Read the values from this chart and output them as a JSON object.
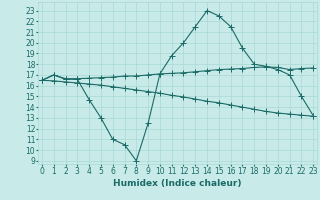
{
  "xlabel": "Humidex (Indice chaleur)",
  "bg_color": "#c8eae8",
  "grid_color": "#a8d8d4",
  "line_color": "#1a6b68",
  "x_ticks": [
    0,
    1,
    2,
    3,
    4,
    5,
    6,
    7,
    8,
    9,
    10,
    11,
    12,
    13,
    14,
    15,
    16,
    17,
    18,
    19,
    20,
    21,
    22,
    23
  ],
  "y_ticks": [
    9,
    10,
    11,
    12,
    13,
    14,
    15,
    16,
    17,
    18,
    19,
    20,
    21,
    22,
    23
  ],
  "ylim": [
    8.7,
    23.8
  ],
  "xlim": [
    -0.3,
    23.3
  ],
  "line1_x": [
    0,
    1,
    2,
    3,
    4,
    5,
    6,
    7,
    8,
    9,
    10,
    11,
    12,
    13,
    14,
    15,
    16,
    17,
    18,
    19,
    20,
    21,
    22,
    23
  ],
  "line1_y": [
    16.5,
    17.0,
    16.65,
    16.65,
    16.7,
    16.75,
    16.8,
    16.9,
    16.9,
    17.0,
    17.1,
    17.15,
    17.2,
    17.3,
    17.4,
    17.5,
    17.55,
    17.6,
    17.7,
    17.75,
    17.7,
    17.5,
    17.6,
    17.65
  ],
  "line2_x": [
    0,
    1,
    2,
    3,
    4,
    5,
    6,
    7,
    8,
    9,
    10,
    11,
    12,
    13,
    14,
    15,
    16,
    17,
    18,
    19,
    20,
    21,
    22,
    23
  ],
  "line2_y": [
    16.5,
    17.0,
    16.6,
    16.6,
    14.7,
    13.0,
    11.0,
    10.5,
    9.0,
    12.5,
    17.1,
    18.8,
    20.0,
    21.5,
    23.0,
    22.5,
    21.5,
    19.5,
    18.0,
    17.8,
    17.5,
    17.0,
    15.0,
    13.2
  ],
  "line3_x": [
    0,
    1,
    2,
    3,
    4,
    5,
    6,
    7,
    8,
    9,
    10,
    11,
    12,
    13,
    14,
    15,
    16,
    17,
    18,
    19,
    20,
    21,
    22,
    23
  ],
  "line3_y": [
    16.5,
    16.45,
    16.35,
    16.25,
    16.15,
    16.05,
    15.9,
    15.75,
    15.6,
    15.45,
    15.3,
    15.1,
    14.95,
    14.75,
    14.55,
    14.4,
    14.2,
    14.0,
    13.8,
    13.6,
    13.45,
    13.35,
    13.25,
    13.15
  ],
  "tick_fontsize": 5.5,
  "label_fontsize": 6.5,
  "linewidth": 0.8,
  "markersize": 2.2
}
